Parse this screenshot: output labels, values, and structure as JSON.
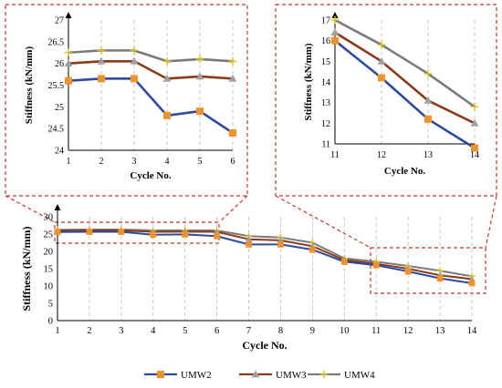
{
  "colors": {
    "UMW2": "#2E4A9E",
    "UMW3": "#8B3A1A",
    "UMW4": "#7A7A7A",
    "marker_UMW2": "#F0922B",
    "marker_UMW3": "#A0A0A0",
    "marker_UMW4": "#D9C21A",
    "highlight": "#C0392B"
  },
  "legend": {
    "items": [
      {
        "name": "UMW2",
        "marker": "square"
      },
      {
        "name": "UMW3",
        "marker": "triangle"
      },
      {
        "name": "UMW4",
        "marker": "star"
      }
    ]
  },
  "chart_data": [
    {
      "id": "main",
      "type": "line",
      "xlabel": "Cycle No.",
      "ylabel": "Stiffness (kN/mm)",
      "x": [
        1,
        2,
        3,
        4,
        5,
        6,
        7,
        8,
        9,
        10,
        11,
        12,
        13,
        14
      ],
      "xlim": [
        1,
        14
      ],
      "ylim": [
        0,
        30
      ],
      "yticks": [
        0,
        5,
        10,
        15,
        20,
        25,
        30
      ],
      "grid": "vertical dashed",
      "legend_position": "bottom",
      "series": [
        {
          "name": "UMW2",
          "values": [
            25.6,
            25.65,
            25.65,
            24.8,
            24.9,
            24.4,
            22.0,
            22.0,
            20.5,
            17.0,
            16.0,
            14.2,
            12.2,
            10.8
          ]
        },
        {
          "name": "UMW3",
          "values": [
            26.0,
            26.05,
            26.05,
            25.65,
            25.7,
            25.65,
            23.5,
            23.2,
            21.5,
            17.5,
            16.4,
            15.0,
            13.1,
            12.0
          ]
        },
        {
          "name": "UMW4",
          "values": [
            26.25,
            26.3,
            26.3,
            26.05,
            26.1,
            26.05,
            24.4,
            24.0,
            22.5,
            18.0,
            17.0,
            15.8,
            14.4,
            12.8
          ]
        }
      ]
    },
    {
      "id": "inset-left",
      "type": "line",
      "xlabel": "Cycle No.",
      "ylabel": "Stiffness (kN/mm)",
      "x": [
        1,
        2,
        3,
        4,
        5,
        6
      ],
      "xlim": [
        1,
        6
      ],
      "ylim": [
        24,
        27
      ],
      "yticks": [
        24,
        24.5,
        25,
        25.5,
        26,
        26.5,
        27
      ],
      "ytick_labels": [
        "24",
        "24.5",
        "25",
        "25.5",
        "26",
        "26.5",
        "27"
      ],
      "grid": "vertical dashed",
      "series": [
        {
          "name": "UMW2",
          "values": [
            25.6,
            25.65,
            25.65,
            24.8,
            24.9,
            24.4
          ]
        },
        {
          "name": "UMW3",
          "values": [
            26.0,
            26.05,
            26.05,
            25.65,
            25.7,
            25.65
          ]
        },
        {
          "name": "UMW4",
          "values": [
            26.25,
            26.3,
            26.3,
            26.05,
            26.1,
            26.05
          ]
        }
      ]
    },
    {
      "id": "inset-right",
      "type": "line",
      "xlabel": "Cycle No.",
      "ylabel": "Stiffness (kN/mm)",
      "x": [
        11,
        12,
        13,
        14
      ],
      "xlim": [
        11,
        14
      ],
      "ylim": [
        11,
        17
      ],
      "yticks": [
        11,
        12,
        13,
        14,
        15,
        16,
        17
      ],
      "grid": "vertical dashed",
      "series": [
        {
          "name": "UMW2",
          "values": [
            16.0,
            14.2,
            12.2,
            10.8
          ]
        },
        {
          "name": "UMW3",
          "values": [
            16.4,
            15.0,
            13.1,
            12.0
          ]
        },
        {
          "name": "UMW4",
          "values": [
            17.0,
            15.8,
            14.4,
            12.8
          ]
        }
      ]
    }
  ]
}
